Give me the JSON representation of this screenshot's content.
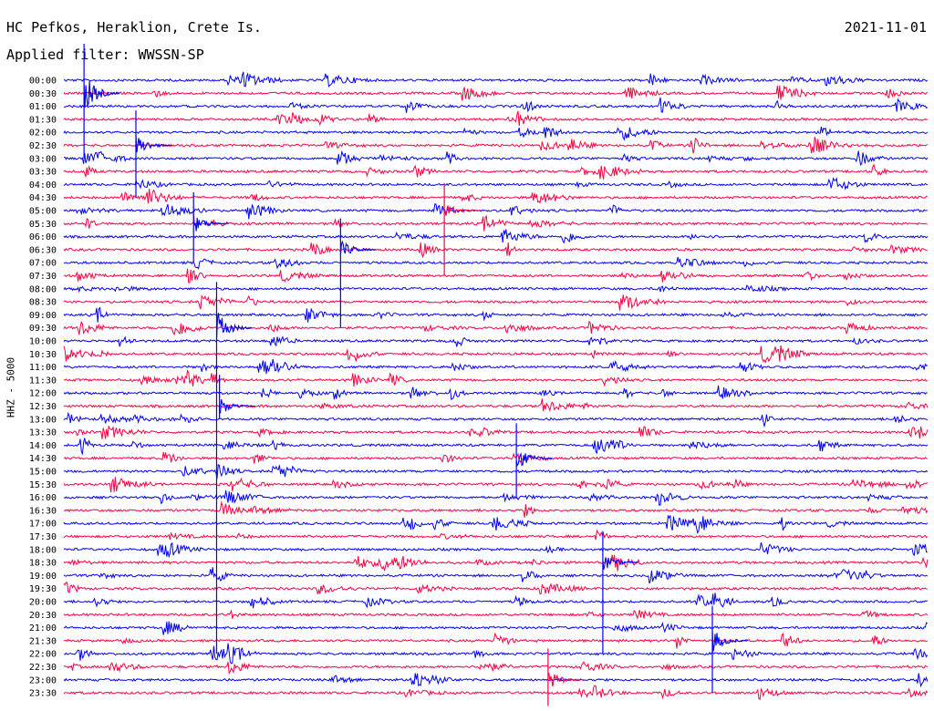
{
  "header": {
    "station": "HC Pefkos, Heraklion, Crete Is.",
    "filter": "Applied filter: WWSSN-SP",
    "date": "2021-11-01"
  },
  "colors": {
    "trace_a": "#0000ff",
    "trace_b": "#ff0040",
    "background": "#ffffff"
  },
  "chart_data": {
    "type": "line",
    "title": "HC Pefkos, Heraklion, Crete Is.",
    "subtitle": "Applied filter: WWSSN-SP",
    "ylabel": "HHZ - 5000",
    "xlabel": "",
    "rows": [
      "00:00",
      "00:30",
      "01:00",
      "01:30",
      "02:00",
      "02:30",
      "03:00",
      "03:30",
      "04:00",
      "04:30",
      "05:00",
      "05:30",
      "06:00",
      "06:30",
      "07:00",
      "07:30",
      "08:00",
      "08:30",
      "09:00",
      "09:30",
      "10:00",
      "10:30",
      "11:00",
      "11:30",
      "12:00",
      "12:30",
      "13:00",
      "13:30",
      "14:00",
      "14:30",
      "15:00",
      "15:30",
      "16:00",
      "16:30",
      "17:00",
      "17:30",
      "18:00",
      "18:30",
      "19:00",
      "19:30",
      "20:00",
      "20:30",
      "21:00",
      "21:30",
      "22:00",
      "22:30",
      "23:00",
      "23:30"
    ],
    "series": [
      {
        "color": "#0000ff",
        "rows": "00:00, 01:00, 02:00, ... 23:00"
      },
      {
        "color": "#ff0040",
        "rows": "00:30, 01:30, 02:30, ... 23:30"
      }
    ],
    "events": [
      {
        "minute": 0.7,
        "rows": [
          0,
          6
        ],
        "amp": 1.0
      },
      {
        "minute": 5.3,
        "rows": [
          18,
          44
        ],
        "amp": 0.9
      },
      {
        "minute": 2.5,
        "rows": [
          4,
          9
        ],
        "amp": 0.6
      },
      {
        "minute": 4.5,
        "rows": [
          10,
          14
        ],
        "amp": 0.5
      },
      {
        "minute": 9.6,
        "rows": [
          12,
          19
        ],
        "amp": 0.5
      },
      {
        "minute": 13.2,
        "rows": [
          9,
          15
        ],
        "amp": 0.4
      },
      {
        "minute": 5.4,
        "rows": [
          24,
          26
        ],
        "amp": 0.5
      },
      {
        "minute": 15.7,
        "rows": [
          28,
          32
        ],
        "amp": 0.6
      },
      {
        "minute": 18.7,
        "rows": [
          36,
          44
        ],
        "amp": 0.5
      },
      {
        "minute": 16.8,
        "rows": [
          45,
          48
        ],
        "amp": 0.5
      },
      {
        "minute": 22.5,
        "rows": [
          42,
          47
        ],
        "amp": 0.6
      }
    ],
    "ylim": [
      0,
      47
    ],
    "grid": false,
    "legend": "none"
  }
}
